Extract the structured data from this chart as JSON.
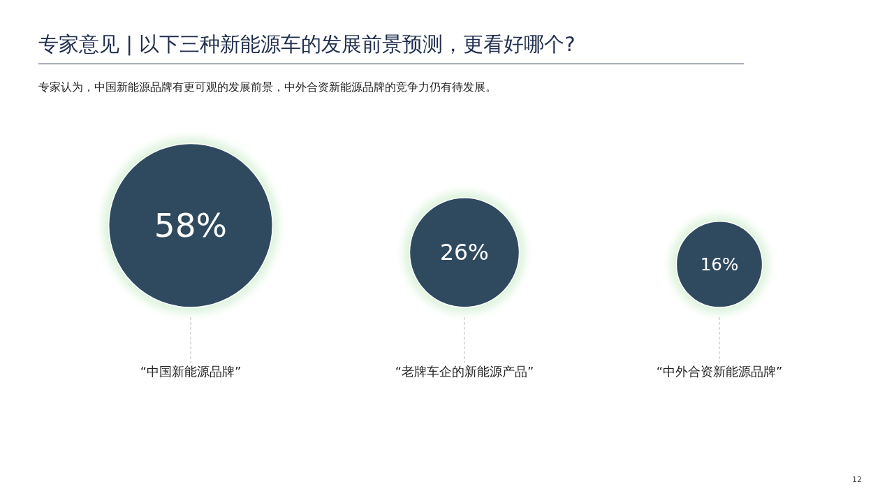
{
  "chart_data": {
    "type": "other",
    "title": "专家意见 | 以下三种新能源车的发展前景预测，更看好哪个?",
    "subtitle": "专家认为，中国新能源品牌有更可观的发展前景，中外合资新能源品牌的竞争力仍有待发展。",
    "categories": [
      "“中国新能源品牌”",
      "“老牌车企的新能源产品”",
      "“中外合资新能源品牌”"
    ],
    "values": [
      58,
      26,
      16
    ],
    "color": "#2f4a5f",
    "value_labels": [
      "58%",
      "26%",
      "16%"
    ],
    "annotations": [
      "12"
    ]
  }
}
